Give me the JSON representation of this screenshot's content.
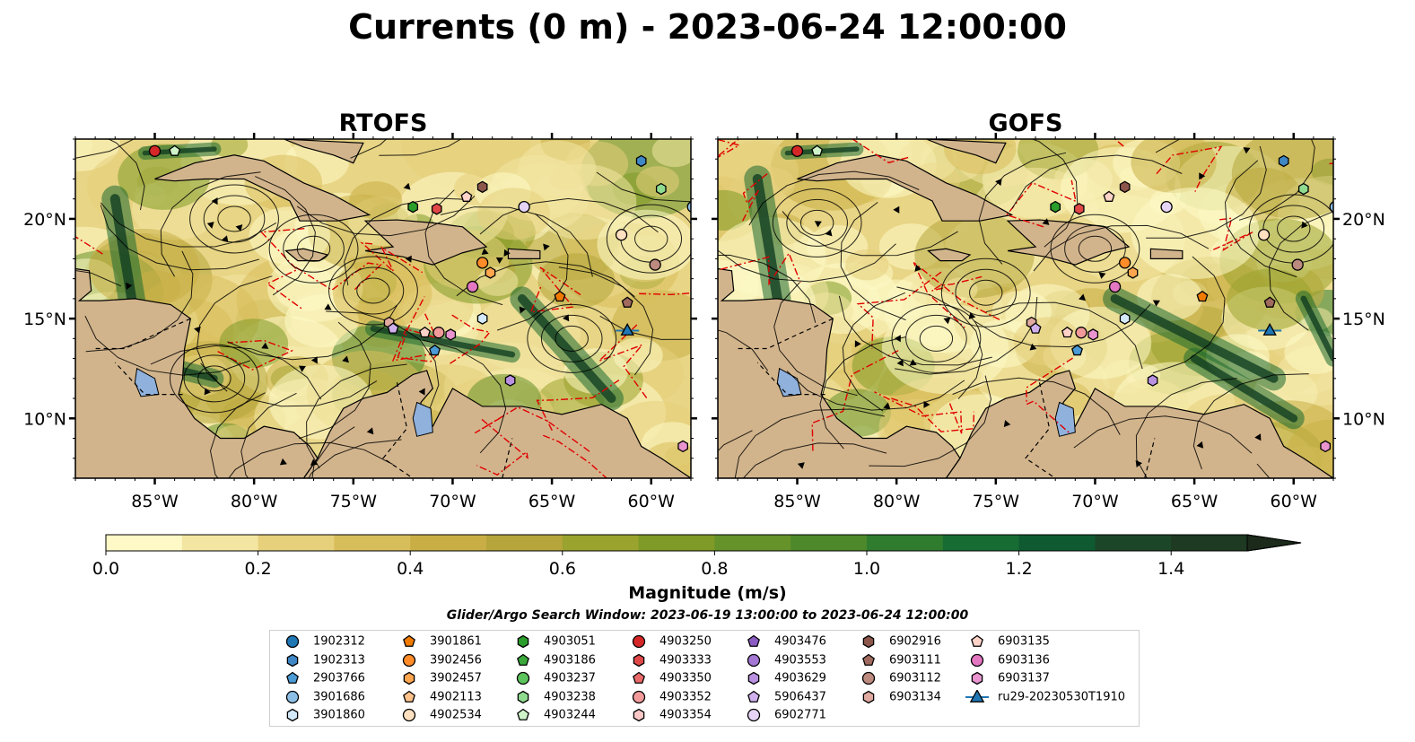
{
  "title": "Currents (0 m) - 2023-06-24 12:00:00",
  "panels": [
    {
      "name": "RTOFS",
      "lon_ticks": [
        "85°W",
        "80°W",
        "75°W",
        "70°W",
        "65°W",
        "60°W"
      ],
      "lat_ticks": [
        "20°N",
        "15°N",
        "10°N"
      ],
      "lat_label_side": "left"
    },
    {
      "name": "GOFS",
      "lon_ticks": [
        "85°W",
        "80°W",
        "75°W",
        "70°W",
        "65°W",
        "60°W"
      ],
      "lat_ticks": [
        "20°N",
        "15°N",
        "10°N"
      ],
      "lat_label_side": "right"
    }
  ],
  "map_extent": {
    "lon": [
      -89,
      -58
    ],
    "lat": [
      7,
      24
    ]
  },
  "colorbar": {
    "label": "Magnitude (m/s)",
    "ticks": [
      "0.0",
      "0.2",
      "0.4",
      "0.6",
      "0.8",
      "1.0",
      "1.2",
      "1.4"
    ],
    "range": [
      0.0,
      1.5
    ],
    "extend": "max",
    "colors": [
      "#fef9c7",
      "#f3e6a2",
      "#e6d07c",
      "#d8bd5b",
      "#c9ae45",
      "#b5a53a",
      "#9aa32d",
      "#7f9a26",
      "#66922a",
      "#4d882a",
      "#2f7c2e",
      "#176c33",
      "#0f5a30",
      "#1c4628",
      "#1e3a22"
    ]
  },
  "search_window": "Glider/Argo Search Window: 2023-06-19 13:00:00 to 2023-06-24 12:00:00",
  "legend": {
    "columns": [
      [
        {
          "label": "1902312",
          "marker": "circle",
          "color": "#1f77b4"
        },
        {
          "label": "1902313",
          "marker": "hexagon",
          "color": "#3f88c5"
        },
        {
          "label": "2903766",
          "marker": "pentagon",
          "color": "#4a9bd6"
        },
        {
          "label": "3901686",
          "marker": "circle",
          "color": "#8dbfe6"
        },
        {
          "label": "3901860",
          "marker": "hexagon",
          "color": "#d4e9f9"
        }
      ],
      [
        {
          "label": "3901861",
          "marker": "pentagon",
          "color": "#f07b00"
        },
        {
          "label": "3902456",
          "marker": "circle",
          "color": "#ff8c28"
        },
        {
          "label": "3902457",
          "marker": "hexagon",
          "color": "#ffa64f"
        },
        {
          "label": "4902113",
          "marker": "pentagon",
          "color": "#ffc28a"
        },
        {
          "label": "4902534",
          "marker": "circle",
          "color": "#ffe0c0"
        }
      ],
      [
        {
          "label": "4903051",
          "marker": "hexagon",
          "color": "#2a9d2a"
        },
        {
          "label": "4903186",
          "marker": "pentagon",
          "color": "#3aa83a"
        },
        {
          "label": "4903237",
          "marker": "circle",
          "color": "#5cc45c"
        },
        {
          "label": "4903238",
          "marker": "hexagon",
          "color": "#8fdb8f"
        },
        {
          "label": "4903244",
          "marker": "pentagon",
          "color": "#cff3c8"
        }
      ],
      [
        {
          "label": "4903250",
          "marker": "circle",
          "color": "#d62728"
        },
        {
          "label": "4903333",
          "marker": "hexagon",
          "color": "#e04848"
        },
        {
          "label": "4903350",
          "marker": "pentagon",
          "color": "#ea6a6a"
        },
        {
          "label": "4903352",
          "marker": "circle",
          "color": "#f29a9a"
        },
        {
          "label": "4903354",
          "marker": "hexagon",
          "color": "#fbc8c8"
        }
      ],
      [
        {
          "label": "4903476",
          "marker": "pentagon",
          "color": "#8c5cc2"
        },
        {
          "label": "4903553",
          "marker": "circle",
          "color": "#a477d4"
        },
        {
          "label": "4903629",
          "marker": "hexagon",
          "color": "#b991e0"
        },
        {
          "label": "5906437",
          "marker": "pentagon",
          "color": "#cfb0ec"
        },
        {
          "label": "6902771",
          "marker": "circle",
          "color": "#e6d4f6"
        }
      ],
      [
        {
          "label": "6902916",
          "marker": "hexagon",
          "color": "#8c564b"
        },
        {
          "label": "6903111",
          "marker": "pentagon",
          "color": "#a06a5e"
        },
        {
          "label": "6903112",
          "marker": "circle",
          "color": "#bd8a7f"
        },
        {
          "label": "6903134",
          "marker": "hexagon",
          "color": "#e0aaa0"
        }
      ],
      [
        {
          "label": "6903135",
          "marker": "pentagon",
          "color": "#ffd3c8"
        },
        {
          "label": "6903136",
          "marker": "circle",
          "color": "#e377c2"
        },
        {
          "label": "6903137",
          "marker": "hexagon",
          "color": "#e994cf"
        },
        {
          "label": "ru29-20230530T1910",
          "marker": "triangle-line",
          "color": "#1f77b4"
        }
      ]
    ]
  },
  "platforms": [
    {
      "id": "4903250",
      "lon": -85.0,
      "lat": 23.4
    },
    {
      "id": "4903244",
      "lon": -84.0,
      "lat": 23.4
    },
    {
      "id": "1902313",
      "lon": -60.5,
      "lat": 22.9
    },
    {
      "id": "6903135",
      "lon": -69.3,
      "lat": 21.1
    },
    {
      "id": "6902916",
      "lon": -68.5,
      "lat": 21.6
    },
    {
      "id": "4903238",
      "lon": -59.5,
      "lat": 21.5
    },
    {
      "id": "4903051",
      "lon": -72.0,
      "lat": 20.6
    },
    {
      "id": "4903333",
      "lon": -70.8,
      "lat": 20.5
    },
    {
      "id": "6902771",
      "lon": -66.4,
      "lat": 20.6
    },
    {
      "id": "3901686",
      "lon": -57.9,
      "lat": 20.6
    },
    {
      "id": "4902534",
      "lon": -61.5,
      "lat": 19.2
    },
    {
      "id": "3902456",
      "lon": -68.5,
      "lat": 17.8
    },
    {
      "id": "3902457",
      "lon": -68.1,
      "lat": 17.3
    },
    {
      "id": "6903112",
      "lon": -59.8,
      "lat": 17.7
    },
    {
      "id": "6903136",
      "lon": -69.0,
      "lat": 16.6
    },
    {
      "id": "3901861",
      "lon": -64.6,
      "lat": 16.1
    },
    {
      "id": "6903111",
      "lon": -61.2,
      "lat": 15.8
    },
    {
      "id": "3901860",
      "lon": -68.5,
      "lat": 15.0
    },
    {
      "id": "6903134",
      "lon": -73.2,
      "lat": 14.8
    },
    {
      "id": "5906437",
      "lon": -73.0,
      "lat": 14.5
    },
    {
      "id": "6903135",
      "lon": -71.4,
      "lat": 14.3
    },
    {
      "id": "4903352",
      "lon": -70.7,
      "lat": 14.3
    },
    {
      "id": "6903137",
      "lon": -70.1,
      "lat": 14.2
    },
    {
      "id": "2903766",
      "lon": -70.9,
      "lat": 13.4
    },
    {
      "id": "4903629",
      "lon": -67.1,
      "lat": 11.9
    },
    {
      "id": "ru29-20230530T1910",
      "lon": -61.2,
      "lat": 14.4
    },
    {
      "id": "6903137",
      "lon": -58.4,
      "lat": 8.6
    }
  ]
}
